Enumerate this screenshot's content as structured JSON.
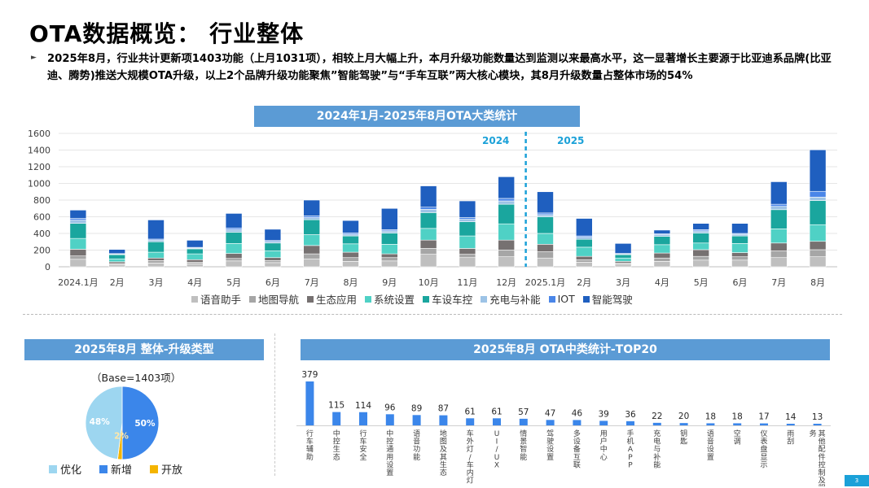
{
  "page": {
    "title": "OTA数据概览： 行业整体",
    "summary": "2025年8月，行业共计更新项1403功能（上月1031项），相较上月大幅上升，本月升级功能数量达到监测以来最高水平，这一显著增长主要源于比亚迪系品牌(比亚迪、腾势)推送大规模OTA升级，以上2个品牌升级功能聚焦”智能驾驶”与“手车互联”两大核心模块，其8月升级数量占整体市场的54%",
    "page_number": "3"
  },
  "chart_data": [
    {
      "type": "bar",
      "stacked": true,
      "title": "2024年1月-2025年8月OTA大类统计",
      "year_labels": [
        "2024",
        "2025"
      ],
      "ylim": [
        0,
        1600
      ],
      "yticks": [
        0,
        200,
        400,
        600,
        800,
        1000,
        1200,
        1400,
        1600
      ],
      "categories": [
        "2024.1月",
        "2月",
        "3月",
        "4月",
        "5月",
        "6月",
        "7月",
        "8月",
        "9月",
        "10月",
        "11月",
        "12月",
        "2025.1月",
        "2月",
        "3月",
        "4月",
        "5月",
        "6月",
        "7月",
        "8月"
      ],
      "series": [
        {
          "name": "语音助手",
          "color": "#bfbfbf",
          "values": [
            90,
            25,
            45,
            35,
            70,
            50,
            95,
            65,
            70,
            150,
            110,
            120,
            105,
            55,
            30,
            65,
            80,
            80,
            110,
            120
          ]
        },
        {
          "name": "地图导航",
          "color": "#a6a6a6",
          "values": [
            40,
            15,
            30,
            20,
            30,
            25,
            60,
            45,
            40,
            70,
            40,
            80,
            75,
            30,
            15,
            40,
            45,
            40,
            80,
            85
          ]
        },
        {
          "name": "生态应用",
          "color": "#767171",
          "values": [
            80,
            20,
            30,
            30,
            60,
            35,
            100,
            65,
            45,
            100,
            70,
            120,
            90,
            40,
            20,
            60,
            80,
            50,
            95,
            100
          ]
        },
        {
          "name": "系统设置",
          "color": "#4fd1c5",
          "values": [
            130,
            35,
            70,
            70,
            120,
            80,
            130,
            100,
            115,
            140,
            150,
            195,
            130,
            110,
            40,
            100,
            80,
            110,
            170,
            200
          ]
        },
        {
          "name": "车设车控",
          "color": "#1aa69e",
          "values": [
            180,
            50,
            125,
            60,
            135,
            95,
            180,
            95,
            135,
            190,
            170,
            235,
            200,
            95,
            40,
            100,
            120,
            90,
            230,
            290
          ]
        },
        {
          "name": "充电与补能",
          "color": "#9dc3e6",
          "values": [
            40,
            8,
            20,
            10,
            30,
            20,
            25,
            20,
            25,
            40,
            30,
            40,
            25,
            25,
            10,
            20,
            25,
            20,
            40,
            40
          ]
        },
        {
          "name": "IOT",
          "color": "#4a86e8",
          "values": [
            20,
            5,
            12,
            8,
            20,
            10,
            20,
            15,
            15,
            25,
            20,
            30,
            20,
            15,
            5,
            10,
            15,
            10,
            25,
            70
          ]
        },
        {
          "name": "智能驾驶",
          "color": "#1f5fbf",
          "values": [
            100,
            50,
            230,
            85,
            175,
            135,
            190,
            150,
            255,
            255,
            200,
            260,
            255,
            210,
            120,
            45,
            75,
            120,
            270,
            498
          ]
        }
      ],
      "totals_approx": [
        680,
        210,
        565,
        335,
        640,
        450,
        800,
        545,
        700,
        970,
        770,
        1100,
        900,
        580,
        280,
        440,
        520,
        520,
        1020,
        1403
      ]
    },
    {
      "type": "pie",
      "title": "2025年8月 整体-升级类型",
      "subtitle": "（Base=1403项）",
      "slices": [
        {
          "name": "优化",
          "value": 48,
          "label": "48%",
          "color": "#9dd6f0"
        },
        {
          "name": "新增",
          "value": 50,
          "label": "50%",
          "color": "#3b86ea"
        },
        {
          "name": "开放",
          "value": 2,
          "label": "2%",
          "color": "#f4b400"
        }
      ]
    },
    {
      "type": "bar",
      "title": "2025年8月 OTA中类统计-TOP20",
      "color": "#3b86ea",
      "ylim": [
        0,
        379
      ],
      "categories": [
        "行车辅助",
        "中控生态",
        "行车安全",
        "中控通用设置",
        "语音功能",
        "地图及其生态",
        "车外灯/车内灯",
        "UI/UX",
        "情景智能",
        "驾驶设置",
        "多设备互联",
        "用户中心",
        "手机APP",
        "充电与补能",
        "钥匙",
        "语音设置",
        "空调",
        "仪表盘显示",
        "雨刮",
        "其他配件控制及服务"
      ],
      "values": [
        379,
        115,
        114,
        96,
        89,
        87,
        61,
        61,
        57,
        47,
        46,
        39,
        36,
        22,
        20,
        18,
        18,
        17,
        14,
        13
      ]
    }
  ]
}
